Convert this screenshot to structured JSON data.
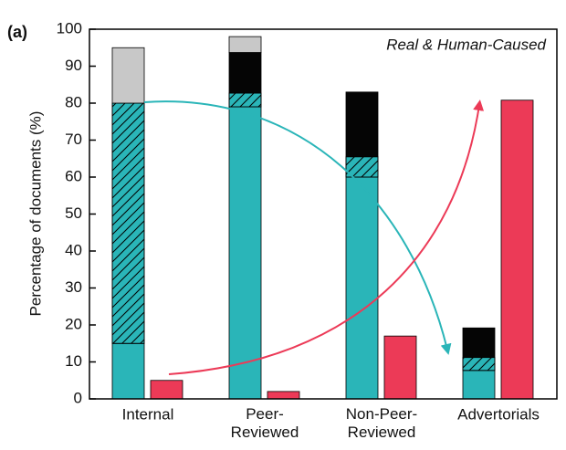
{
  "chart_data": {
    "type": "bar",
    "panel_label": "(a)",
    "annotation": "Real & Human-Caused",
    "ylabel": "Percentage of documents (%)",
    "categories": [
      "Internal",
      "Peer-Reviewed",
      "Non-Peer-Reviewed",
      "Advertorials"
    ],
    "series": [
      {
        "color": "#2ab5b8",
        "stacked": true,
        "values": [
          15,
          79,
          60,
          7.7
        ]
      },
      {
        "color": "#2ab5b8",
        "hatch": true,
        "stacked": true,
        "values": [
          65,
          3.7,
          5.5,
          3.5
        ]
      },
      {
        "color": "#050505",
        "stacked": true,
        "values": [
          0,
          11,
          17.5,
          8
        ]
      },
      {
        "color": "#c8c8c8",
        "stacked": true,
        "values": [
          15,
          4.3,
          0,
          0
        ]
      },
      {
        "color": "#ec3a57",
        "stacked": false,
        "values": [
          5,
          2,
          17,
          80.8
        ]
      }
    ],
    "ylim": [
      0,
      100
    ],
    "yticks": [
      0,
      10,
      20,
      30,
      40,
      50,
      60,
      70,
      80,
      90,
      100
    ]
  }
}
